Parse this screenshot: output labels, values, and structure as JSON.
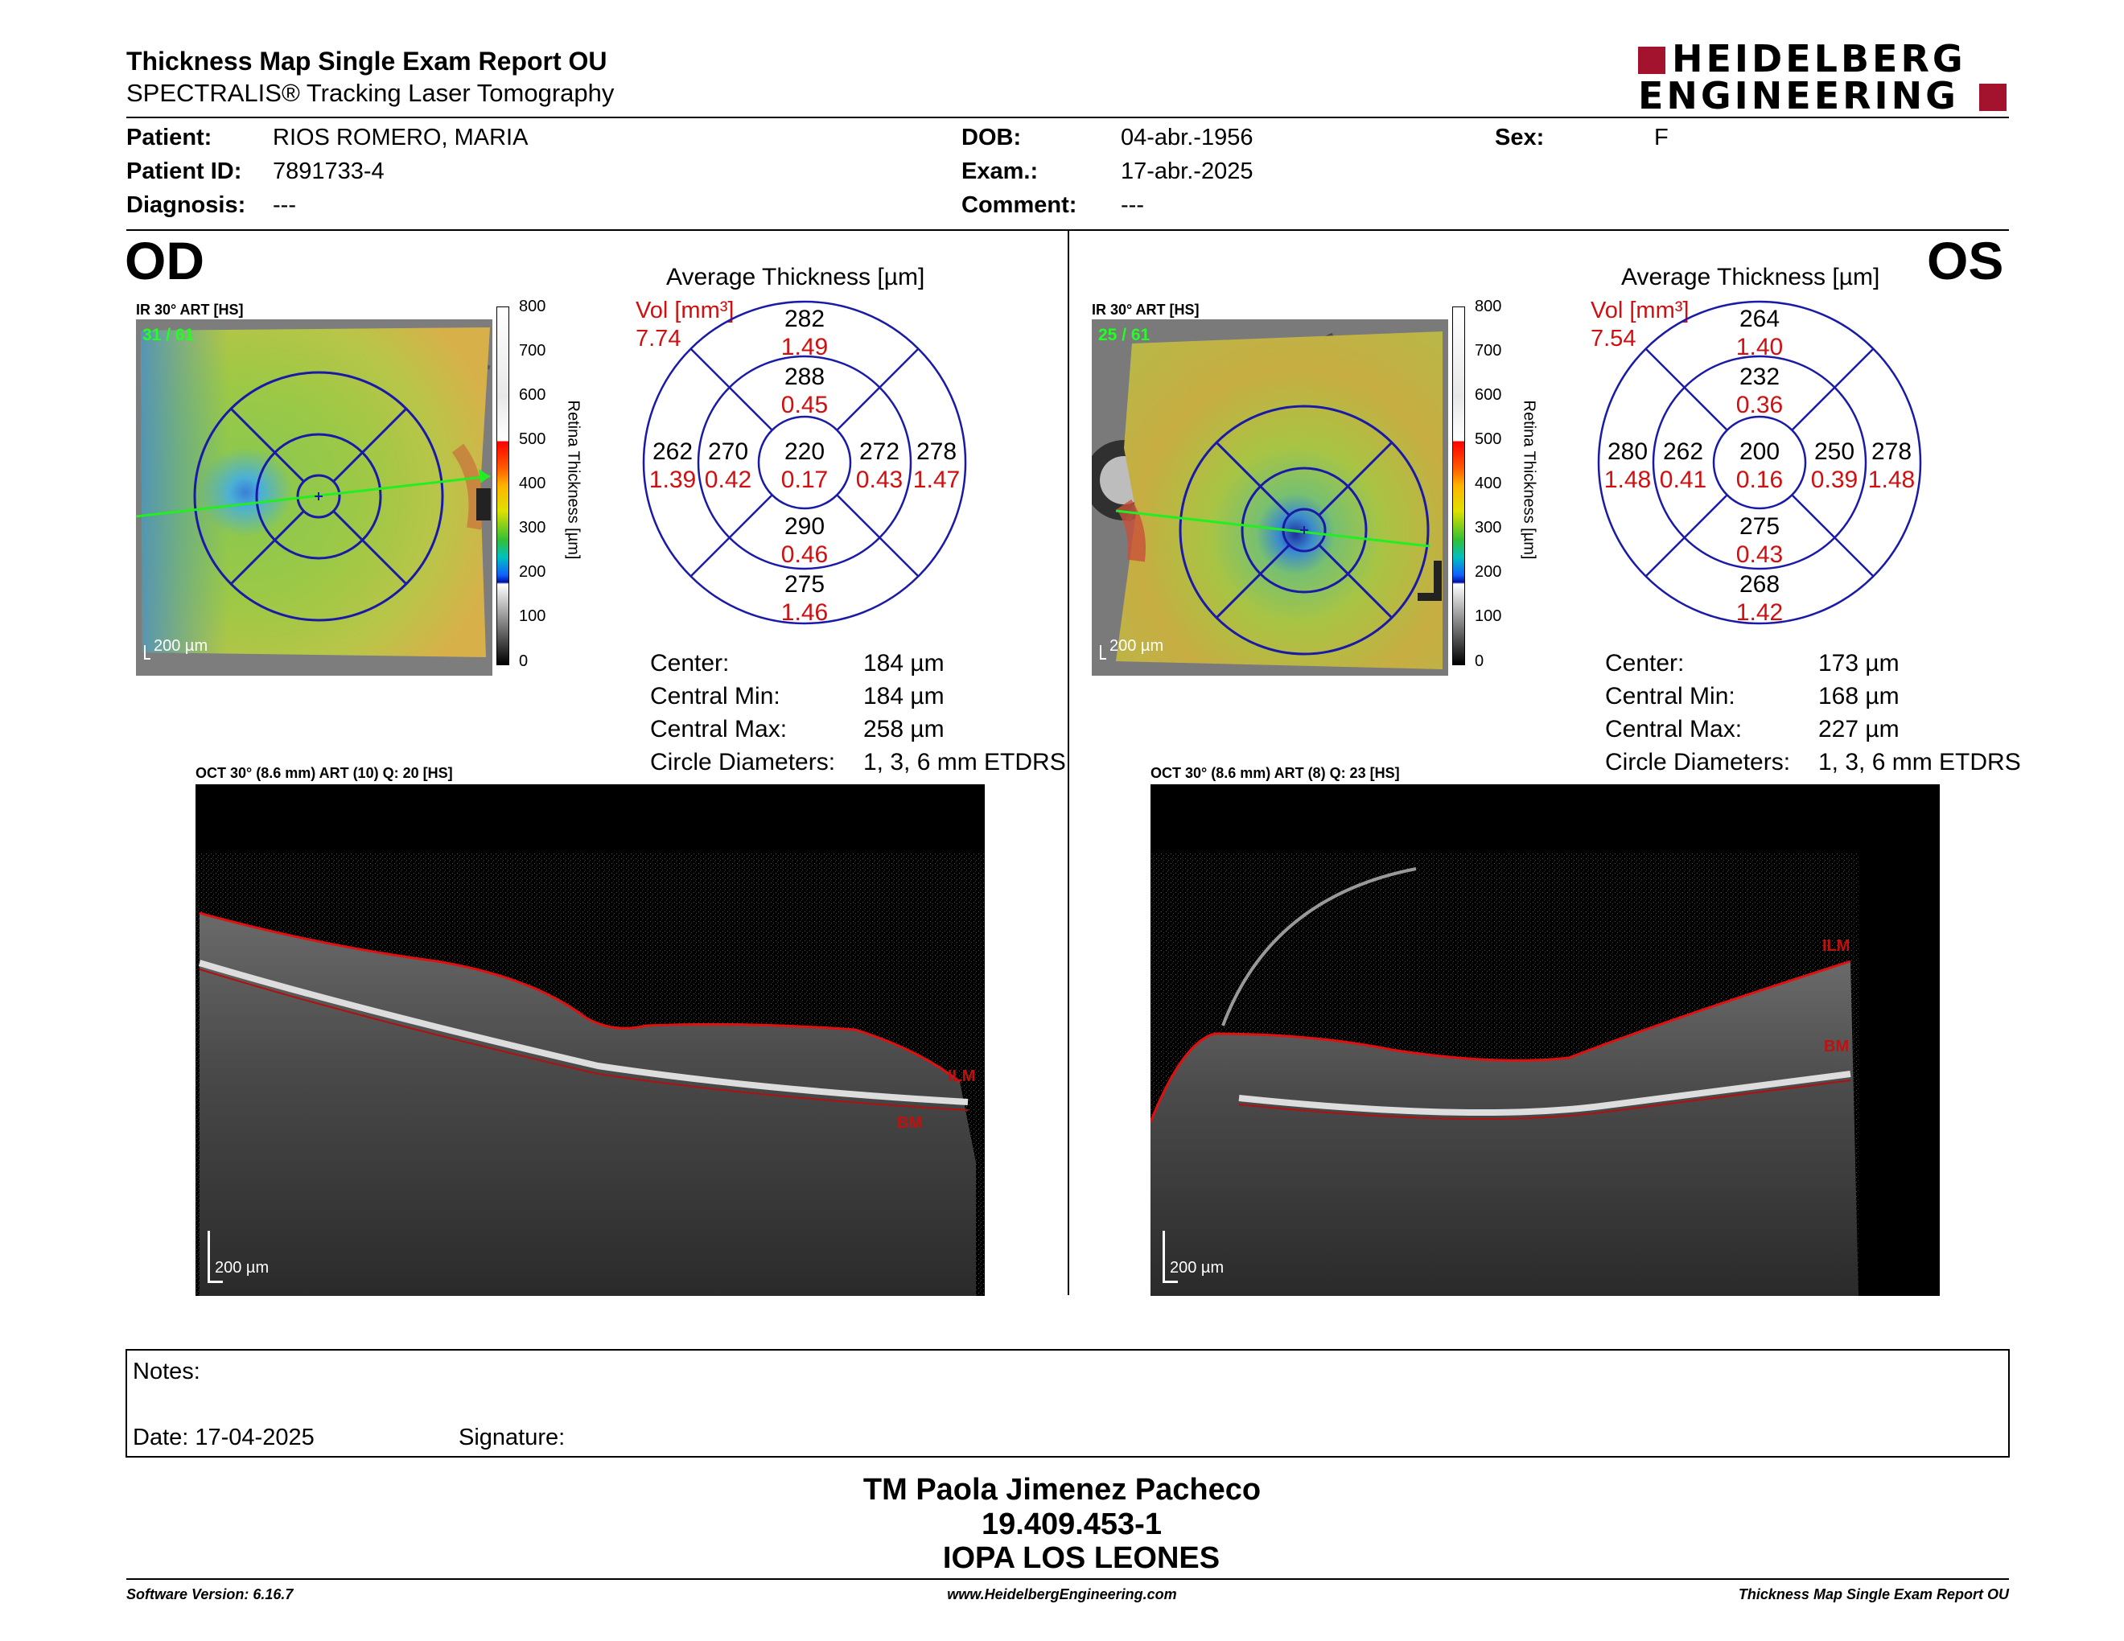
{
  "header": {
    "title": "Thickness Map Single Exam Report OU",
    "subtitle": "SPECTRALIS® Tracking Laser Tomography",
    "logo_line1": "HEIDELBERG",
    "logo_line2": "ENGINEERING",
    "brand_color": "#a4132e"
  },
  "patient": {
    "patient_label": "Patient:",
    "patient_value": "RIOS ROMERO, MARIA",
    "id_label": "Patient ID:",
    "id_value": "7891733-4",
    "diagnosis_label": "Diagnosis:",
    "diagnosis_value": "---",
    "dob_label": "DOB:",
    "dob_value": "04-abr.-1956",
    "exam_label": "Exam.:",
    "exam_value": "17-abr.-2025",
    "comment_label": "Comment:",
    "comment_value": "---",
    "sex_label": "Sex:",
    "sex_value": "F"
  },
  "colorbar": {
    "ticks": [
      "800",
      "700",
      "600",
      "500",
      "400",
      "300",
      "200",
      "100",
      "0"
    ],
    "axis_label": "Retina Thickness [µm]"
  },
  "od": {
    "eye": "OD",
    "ir_label": "IR 30° ART [HS]",
    "ir_frames": "31 / 61",
    "ir_scale": "200 µm",
    "avg_title": "Average Thickness [µm]",
    "vol_label": "Vol [mm³]",
    "vol_value": "7.74",
    "sectors": {
      "outer_sup": [
        "282",
        "1.49"
      ],
      "inner_sup": [
        "288",
        "0.45"
      ],
      "outer_temp": [
        "262",
        "1.39"
      ],
      "inner_temp": [
        "270",
        "0.42"
      ],
      "center": [
        "220",
        "0.17"
      ],
      "inner_nas": [
        "272",
        "0.43"
      ],
      "outer_nas": [
        "278",
        "1.47"
      ],
      "inner_inf": [
        "290",
        "0.46"
      ],
      "outer_inf": [
        "275",
        "1.46"
      ]
    },
    "stats": [
      {
        "label": "Center:",
        "value": "184 µm"
      },
      {
        "label": "Central Min:",
        "value": "184 µm"
      },
      {
        "label": "Central Max:",
        "value": "258 µm"
      },
      {
        "label": "Circle Diameters:",
        "value": "1, 3, 6 mm ETDRS"
      }
    ],
    "oct_label": "OCT 30° (8.6 mm) ART (10) Q: 20 [HS]",
    "oct_scale": "200 µm",
    "ilm": "ILM",
    "bm": "BM"
  },
  "os": {
    "eye": "OS",
    "ir_label": "IR 30° ART [HS]",
    "ir_frames": "25 / 61",
    "ir_scale": "200 µm",
    "avg_title": "Average Thickness [µm]",
    "vol_label": "Vol [mm³]",
    "vol_value": "7.54",
    "sectors": {
      "outer_sup": [
        "264",
        "1.40"
      ],
      "inner_sup": [
        "232",
        "0.36"
      ],
      "outer_temp": [
        "280",
        "1.48"
      ],
      "inner_temp": [
        "262",
        "0.41"
      ],
      "center": [
        "200",
        "0.16"
      ],
      "inner_nas": [
        "250",
        "0.39"
      ],
      "outer_nas": [
        "278",
        "1.48"
      ],
      "inner_inf": [
        "275",
        "0.43"
      ],
      "outer_inf": [
        "268",
        "1.42"
      ]
    },
    "stats": [
      {
        "label": "Center:",
        "value": "173 µm"
      },
      {
        "label": "Central Min:",
        "value": "168 µm"
      },
      {
        "label": "Central Max:",
        "value": "227 µm"
      },
      {
        "label": "Circle Diameters:",
        "value": "1, 3, 6 mm ETDRS"
      }
    ],
    "oct_label": "OCT 30° (8.6 mm) ART (8) Q: 23 [HS]",
    "oct_scale": "200 µm",
    "ilm": "ILM",
    "bm": "BM"
  },
  "notes": {
    "notes_label": "Notes:",
    "date_label": "Date: 17-04-2025",
    "signature_label": "Signature:"
  },
  "signature_block": {
    "name": "TM Paola Jimenez Pacheco",
    "rut": "19.409.453-1",
    "institution": "IOPA LOS LEONES"
  },
  "footer": {
    "software": "Software Version: 6.16.7",
    "website": "www.HeidelbergEngineering.com",
    "report": "Thickness Map Single Exam Report OU"
  }
}
